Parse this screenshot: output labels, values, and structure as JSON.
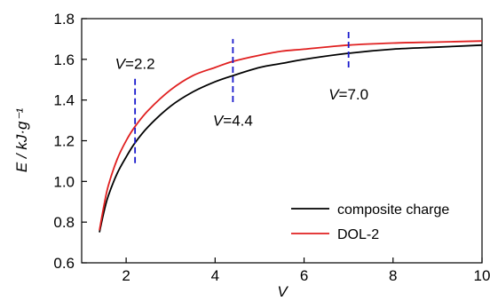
{
  "chart_data": {
    "type": "line",
    "xlabel": "V",
    "ylabel": "E / kJ·g⁻¹",
    "xlim": [
      1.0,
      10.0
    ],
    "ylim": [
      0.6,
      1.8
    ],
    "xticks": [
      "2",
      "4",
      "6",
      "8",
      "10"
    ],
    "yticks": [
      "0.6",
      "0.8",
      "1.0",
      "1.2",
      "1.4",
      "1.6",
      "1.8"
    ],
    "grid": false,
    "legend_position": "bottom-right",
    "series": [
      {
        "name": "composite charge",
        "color": "#000000",
        "x": [
          1.4,
          1.5,
          1.6,
          1.8,
          2.0,
          2.2,
          2.5,
          3.0,
          3.5,
          4.0,
          4.4,
          5.0,
          5.5,
          6.0,
          7.0,
          8.0,
          9.0,
          10.0
        ],
        "y": [
          0.75,
          0.85,
          0.93,
          1.04,
          1.12,
          1.19,
          1.27,
          1.37,
          1.44,
          1.49,
          1.52,
          1.56,
          1.58,
          1.6,
          1.63,
          1.65,
          1.66,
          1.67
        ]
      },
      {
        "name": "DOL-2",
        "color": "#e02020",
        "x": [
          1.4,
          1.5,
          1.6,
          1.8,
          2.0,
          2.2,
          2.5,
          3.0,
          3.5,
          4.0,
          4.4,
          5.0,
          5.5,
          6.0,
          7.0,
          8.0,
          9.0,
          10.0
        ],
        "y": [
          0.76,
          0.88,
          0.98,
          1.11,
          1.2,
          1.27,
          1.35,
          1.45,
          1.52,
          1.56,
          1.59,
          1.62,
          1.64,
          1.65,
          1.67,
          1.68,
          1.685,
          1.69
        ]
      }
    ],
    "annotations": [
      {
        "label": "V=2.2",
        "x": 2.2,
        "y_range": [
          1.09,
          1.51
        ],
        "label_x": 2.2,
        "label_y": 1.58
      },
      {
        "label": "V=4.4",
        "x": 4.4,
        "y_range": [
          1.39,
          1.7
        ],
        "label_x": 4.4,
        "label_y": 1.3
      },
      {
        "label": "V=7.0",
        "x": 7.0,
        "y_range": [
          1.56,
          1.75
        ],
        "label_x": 7.0,
        "label_y": 1.43
      }
    ],
    "annotation_line_color": "#1a1acc"
  }
}
